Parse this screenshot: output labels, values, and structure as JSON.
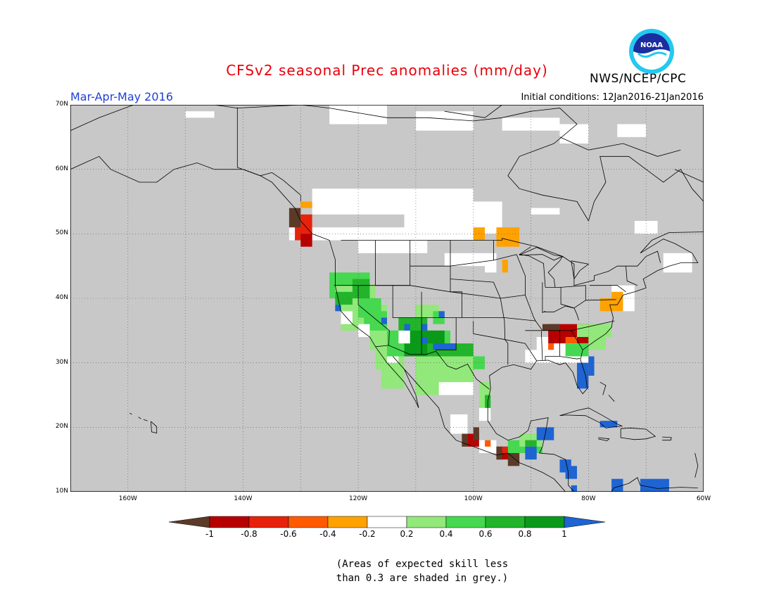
{
  "header": {
    "title": "CFSv2 seasonal Prec anomalies (mm/day)",
    "period": "Mar-Apr-May 2016",
    "initial_conditions": "Initial conditions: 12Jan2016-21Jan2016",
    "agency": "NWS/NCEP/CPC",
    "logo_text": "NOAA"
  },
  "map": {
    "lat_labels": [
      "70N",
      "60N",
      "50N",
      "40N",
      "30N",
      "20N",
      "10N"
    ],
    "lon_labels": [
      "160W",
      "140W",
      "120W",
      "100W",
      "80W",
      "60W"
    ],
    "lat_range": [
      10,
      70
    ],
    "lon_range": [
      -170,
      -60
    ],
    "grid": "dotted",
    "land_color": "#c8c8c8"
  },
  "colorbar": {
    "tick_labels": [
      "-1",
      "-0.8",
      "-0.6",
      "-0.4",
      "-0.2",
      "0.2",
      "0.4",
      "0.6",
      "0.8",
      "1"
    ],
    "colors": [
      "#5c3a28",
      "#b70000",
      "#e8220a",
      "#ff5a00",
      "#ffa200",
      "#ffffff",
      "#92e87a",
      "#46d850",
      "#22b42a",
      "#0a9a1a",
      "#1e64d2"
    ]
  },
  "footnote": {
    "line1": "(Areas of expected skill less",
    "line2": "than 0.3 are shaded in grey.)"
  }
}
